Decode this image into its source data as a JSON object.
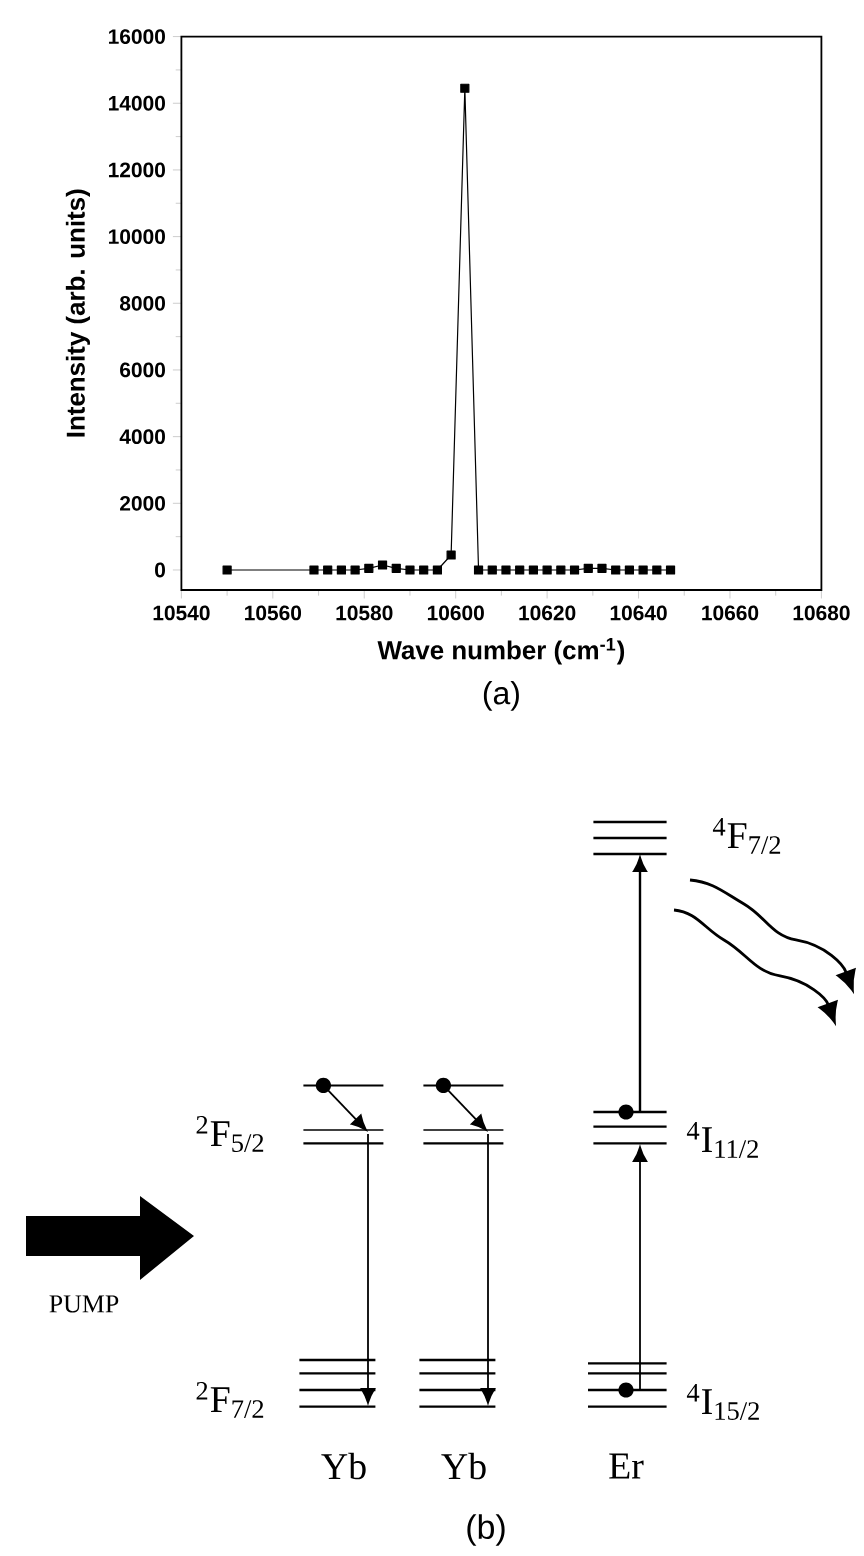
{
  "chart_data": [
    {
      "type": "line",
      "title": "(a)",
      "xlabel": "Wave number (cm$^{-1}$)",
      "ylabel": "Intensity (arb. units)",
      "x": [
        10550,
        10569,
        10572,
        10575,
        10578,
        10581,
        10584,
        10587,
        10590,
        10593,
        10596,
        10599,
        10602,
        10605,
        10608,
        10611,
        10614,
        10617,
        10620,
        10623,
        10626,
        10629,
        10632,
        10635,
        10638,
        10641,
        10644,
        10647
      ],
      "values": [
        0,
        0,
        0,
        0,
        0,
        50,
        150,
        50,
        0,
        0,
        0,
        450,
        14450,
        0,
        0,
        0,
        0,
        0,
        0,
        0,
        0,
        50,
        50,
        0,
        0,
        0,
        0,
        0
      ],
      "color": "#000000",
      "marker": "square",
      "line_style": "solid",
      "xlim": [
        10540,
        10680
      ],
      "ylim": [
        -600,
        16000
      ],
      "xticks": [
        10540,
        10560,
        10580,
        10600,
        10620,
        10640,
        10660,
        10680
      ],
      "yticks": [
        0,
        2000,
        4000,
        6000,
        8000,
        10000,
        12000,
        14000,
        16000
      ]
    },
    {
      "type": "other",
      "title": "(b)",
      "annotations": [
        "PUMP",
        "$^{2}$F$_{5/2}$",
        "$^{2}$F$_{7/2}$",
        "Yb",
        "Yb",
        "Er",
        "$^{4}$I$_{11/2}$",
        "$^{4}$I$_{15/2}$",
        "$^{4}$F$_{7/2}$"
      ]
    }
  ]
}
